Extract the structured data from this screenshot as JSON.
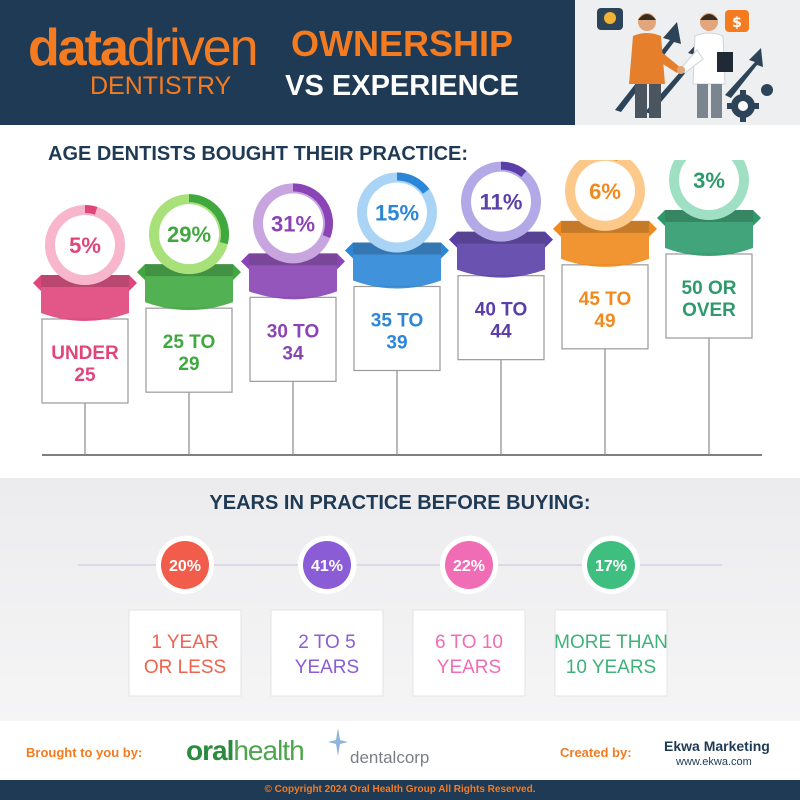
{
  "header": {
    "logo_bold": "data",
    "logo_thin": "driven",
    "logo_sub": "DENTISTRY",
    "title_line1": "OWNERSHIP",
    "title_line2": "VS EXPERIENCE"
  },
  "colors": {
    "navy": "#1f3a55",
    "orange": "#f47b20"
  },
  "chart_data": [
    {
      "type": "bar",
      "title": "AGE DENTISTS BOUGHT THEIR PRACTICE:",
      "categories": [
        "UNDER 25",
        "25 TO 29",
        "30 TO 34",
        "35 TO 39",
        "40 TO 44",
        "45 TO 49",
        "50 OR OVER"
      ],
      "category_lines": [
        [
          "UNDER",
          "25"
        ],
        [
          "25 TO",
          "29"
        ],
        [
          "30 TO",
          "34"
        ],
        [
          "35 TO",
          "39"
        ],
        [
          "40 TO",
          "44"
        ],
        [
          "45 TO",
          "49"
        ],
        [
          "50 OR",
          "OVER"
        ]
      ],
      "values": [
        5,
        29,
        31,
        15,
        11,
        6,
        3
      ],
      "value_labels": [
        "5%",
        "29%",
        "31%",
        "15%",
        "11%",
        "6%",
        "3%"
      ],
      "unit": "%",
      "colors": [
        "#e0457b",
        "#3fa83f",
        "#8a44b5",
        "#2b86d6",
        "#5a3fa8",
        "#f08a1c",
        "#2e9a6b"
      ],
      "light_colors": [
        "#f7b6cb",
        "#a8e07a",
        "#c9a5e0",
        "#a9d4f5",
        "#b3a9e6",
        "#fcc98a",
        "#9fe0c4"
      ]
    },
    {
      "type": "pie",
      "title": "YEARS IN PRACTICE BEFORE BUYING:",
      "categories": [
        "1 YEAR OR LESS",
        "2 TO 5 YEARS",
        "6 TO 10 YEARS",
        "MORE THAN 10 YEARS"
      ],
      "category_lines": [
        [
          "1 YEAR",
          "OR LESS"
        ],
        [
          "2 TO 5",
          "YEARS"
        ],
        [
          "6 TO 10",
          "YEARS"
        ],
        [
          "MORE THAN",
          "10 YEARS"
        ]
      ],
      "values": [
        20,
        41,
        22,
        17
      ],
      "value_labels": [
        "20%",
        "41%",
        "22%",
        "17%"
      ],
      "unit": "%",
      "colors": [
        "#f25c4a",
        "#8a5cd6",
        "#f06cb4",
        "#3fbf7f"
      ],
      "text_colors": [
        "#f0624d",
        "#8a5cd6",
        "#f06cb4",
        "#3fb27a"
      ]
    }
  ],
  "footer": {
    "brought_label": "Brought to you by:",
    "oral": "oral",
    "health": "health",
    "dentalcorp": "dentalcorp",
    "created_label": "Created by:",
    "creator": "Ekwa Marketing",
    "creator_url": "www.ekwa.com",
    "copyright": "© Copyright 2024 Oral Health Group All Rights Reserved."
  }
}
